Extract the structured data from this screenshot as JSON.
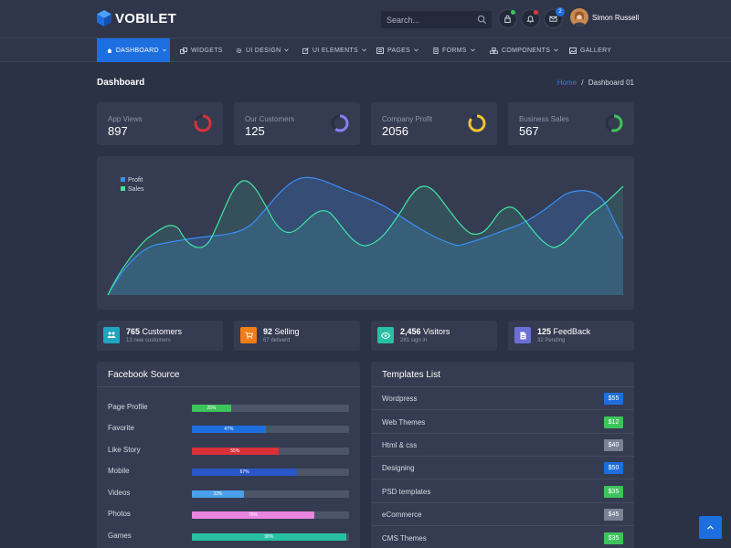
{
  "header": {
    "brand": "VOBILET",
    "search_placeholder": "Search...",
    "mail_badge": "2",
    "user_name": "Simon Russell",
    "colors": {
      "accent": "#1d6fe0",
      "notify_green": "#3cc45a",
      "notify_red": "#e23b3b"
    }
  },
  "nav": {
    "items": [
      {
        "label": "DASHBOARD",
        "icon": "home-icon"
      },
      {
        "label": "WIDGETS",
        "icon": "widgets-icon"
      },
      {
        "label": "UI DESIGN",
        "icon": "gear-icon"
      },
      {
        "label": "UI ELEMENTS",
        "icon": "edit-icon"
      },
      {
        "label": "PAGES",
        "icon": "pages-icon"
      },
      {
        "label": "FORMS",
        "icon": "form-icon"
      },
      {
        "label": "COMPONENTS",
        "icon": "components-icon"
      },
      {
        "label": "GALLERY",
        "icon": "image-icon"
      }
    ]
  },
  "page": {
    "title": "Dashboard",
    "breadcrumb_home": "Home",
    "breadcrumb_sep": "/",
    "breadcrumb_current": "Dashboard 01"
  },
  "stats": [
    {
      "label": "App Views",
      "value": "897",
      "ring_color": "#d9303a",
      "ring_fraction": 0.8
    },
    {
      "label": "Our Customers",
      "value": "125",
      "ring_color": "#8a7ef2",
      "ring_fraction": 0.6
    },
    {
      "label": "Company Profit",
      "value": "2056",
      "ring_color": "#f0c330",
      "ring_fraction": 0.85
    },
    {
      "label": "Business Sales",
      "value": "567",
      "ring_color": "#3cc45a",
      "ring_fraction": 0.55
    }
  ],
  "chart_data": {
    "type": "area",
    "series": [
      {
        "name": "Profit",
        "color": "#3a8ff5"
      },
      {
        "name": "Sales",
        "color": "#3ee6a4"
      }
    ],
    "grid": false,
    "legend": "top-left"
  },
  "info": [
    {
      "count": "765",
      "label": "Customers",
      "sub": "13 new customers",
      "color": "#1fa5bf",
      "icon": "users-icon"
    },
    {
      "count": "92",
      "label": "Selling",
      "sub": "67 deliverd",
      "color": "#f07d1a",
      "icon": "cart-icon"
    },
    {
      "count": "2,456",
      "label": "Visitors",
      "sub": "281 sign in",
      "color": "#26c0a5",
      "icon": "eye-icon"
    },
    {
      "count": "125",
      "label": "FeedBack",
      "sub": "32 Pending",
      "color": "#6b6fd6",
      "icon": "document-icon"
    }
  ],
  "facebook": {
    "title": "Facebook Source",
    "rows": [
      {
        "label": "Page Profile",
        "percent": 25,
        "text": "25%",
        "color": "#3cc45a"
      },
      {
        "label": "Favorite",
        "percent": 47,
        "text": "47%",
        "color": "#1d6fe0"
      },
      {
        "label": "Like Story",
        "percent": 55,
        "text": "55%",
        "color": "#d9303a"
      },
      {
        "label": "Mobile",
        "percent": 67,
        "text": "67%",
        "color": "#2a57c7"
      },
      {
        "label": "Videos",
        "percent": 33,
        "text": "33%",
        "color": "#4aa0ea"
      },
      {
        "label": "Photos",
        "percent": 78,
        "text": "78%",
        "color": "#e886e0"
      },
      {
        "label": "Games",
        "percent": 98,
        "text": "98%",
        "color": "#26c0a5"
      }
    ]
  },
  "templates": {
    "title": "Templates List",
    "rows": [
      {
        "name": "Wordpress",
        "price": "$55",
        "color": "#1d6fe0"
      },
      {
        "name": "Web Themes",
        "price": "$12",
        "color": "#3cc45a"
      },
      {
        "name": "Html & css",
        "price": "$40",
        "color": "#7b8296"
      },
      {
        "name": "Designing",
        "price": "$50",
        "color": "#1d6fe0"
      },
      {
        "name": "PSD templates",
        "price": "$35",
        "color": "#3cc45a"
      },
      {
        "name": "eCommerce",
        "price": "$45",
        "color": "#7b8296"
      },
      {
        "name": "CMS Themes",
        "price": "$35",
        "color": "#3cc45a"
      }
    ]
  }
}
